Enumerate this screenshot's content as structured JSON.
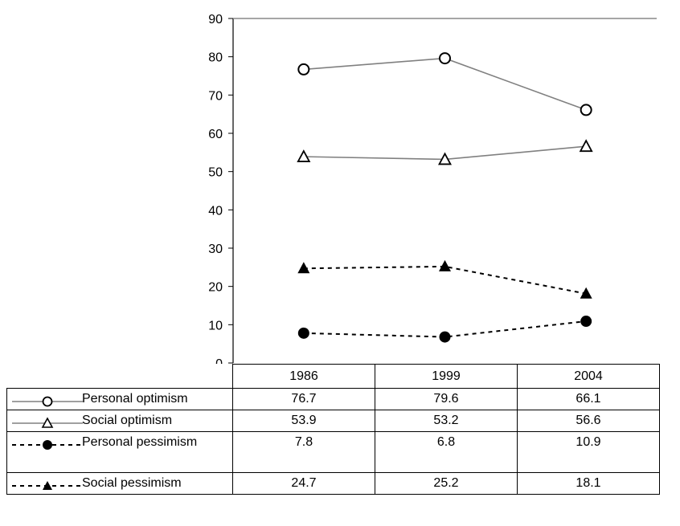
{
  "chart_data": {
    "type": "line",
    "categories": [
      "1986",
      "1999",
      "2004"
    ],
    "ylim": [
      0,
      90
    ],
    "yticks": [
      0,
      10,
      20,
      30,
      40,
      50,
      60,
      70,
      80,
      90
    ],
    "grid": false,
    "legend": "data-table-below",
    "series": [
      {
        "name": "Personal optimism",
        "values": [
          76.7,
          79.6,
          66.1
        ],
        "color": "#808080",
        "line": "solid",
        "marker": "open-circle"
      },
      {
        "name": "Social optimism",
        "values": [
          53.9,
          53.2,
          56.6
        ],
        "color": "#808080",
        "line": "solid",
        "marker": "open-triangle"
      },
      {
        "name": "Personal pessimism",
        "values": [
          7.8,
          6.8,
          10.9
        ],
        "color": "#000000",
        "line": "dashed",
        "marker": "filled-circle"
      },
      {
        "name": "Social pessimism",
        "values": [
          24.7,
          25.2,
          18.1
        ],
        "color": "#000000",
        "line": "dashed",
        "marker": "filled-triangle"
      }
    ]
  },
  "table": {
    "rows": [
      {
        "label": "Personal optimism",
        "values": [
          "76.7",
          "79.6",
          "66.1"
        ]
      },
      {
        "label": "Social optimism",
        "values": [
          "53.9",
          "53.2",
          "56.6"
        ]
      },
      {
        "label": "Personal pessimism",
        "values": [
          "7.8",
          "6.8",
          "10.9"
        ]
      },
      {
        "label": "Social pessimism",
        "values": [
          "24.7",
          "25.2",
          "18.1"
        ]
      }
    ]
  }
}
